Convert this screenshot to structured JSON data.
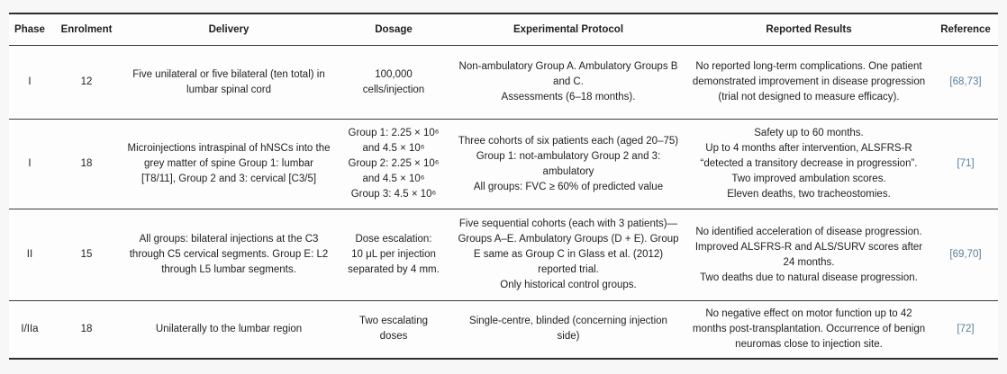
{
  "colors": {
    "reference_link": "#5a7e9e",
    "border_heavy": "#2e2e2e",
    "border_light": "#3c3c3c",
    "text": "#1f1f1f",
    "page_bg": "#f7f7f7",
    "table_bg": "#fdfdfd"
  },
  "table": {
    "columns": {
      "phase": "Phase",
      "enrolment": "Enrolment",
      "delivery": "Delivery",
      "dosage": "Dosage",
      "protocol": "Experimental Protocol",
      "results": "Reported Results",
      "reference": "Reference"
    },
    "rows": [
      {
        "phase": "I",
        "enrolment": "12",
        "delivery": "Five unilateral or five bilateral (ten total) in lumbar spinal cord",
        "dosage": "100,000\ncells/injection",
        "protocol": "Non-ambulatory Group A. Ambulatory Groups B and C.\nAssessments (6–18 months).",
        "results": "No reported long-term complications. One patient demonstrated improvement in disease progression (trial not designed to measure efficacy).",
        "reference": "[68,73]"
      },
      {
        "phase": "I",
        "enrolment": "18",
        "delivery": "Microinjections intraspinal of hNSCs into the grey matter of spine Group 1: lumbar [T8/11], Group 2 and 3: cervical [C3/5]",
        "dosage": "Group 1: 2.25 × 10⁶\nand 4.5 × 10⁶\nGroup 2: 2.25 × 10⁶\nand 4.5 × 10⁶\nGroup 3: 4.5 × 10⁶",
        "protocol": "Three cohorts of six patients each (aged 20–75)\nGroup 1: not-ambulatory Group 2 and 3: ambulatory\nAll groups: FVC ≥ 60% of predicted value",
        "results": "Safety up to 60 months.\nUp to 4 months after intervention, ALSFRS-R “detected a transitory decrease in progression”.\nTwo improved ambulation scores.\nEleven deaths, two tracheostomies.",
        "reference": "[71]"
      },
      {
        "phase": "II",
        "enrolment": "15",
        "delivery": "All groups: bilateral injections at the C3 through C5 cervical segments. Group E: L2 through L5 lumbar segments.",
        "dosage": "Dose escalation:\n10 μL per injection\nseparated by 4 mm.",
        "protocol": "Five sequential cohorts (each with 3 patients)—Groups A–E. Ambulatory Groups (D + E). Group E same as Group C in Glass et al. (2012) reported trial.\nOnly historical control groups.",
        "results": "No identified acceleration of disease progression.\nImproved ALSFRS-R and ALS/SURV scores after 24 months.\nTwo deaths due to natural disease progression.",
        "reference": "[69,70]"
      },
      {
        "phase": "I/IIa",
        "enrolment": "18",
        "delivery": "Unilaterally to the lumbar region",
        "dosage": "Two escalating\ndoses",
        "protocol": "Single-centre, blinded (concerning injection side)",
        "results": "No negative effect on motor function up to 42 months post-transplantation. Occurrence of benign neuromas close to injection site.",
        "reference": "[72]"
      }
    ]
  }
}
